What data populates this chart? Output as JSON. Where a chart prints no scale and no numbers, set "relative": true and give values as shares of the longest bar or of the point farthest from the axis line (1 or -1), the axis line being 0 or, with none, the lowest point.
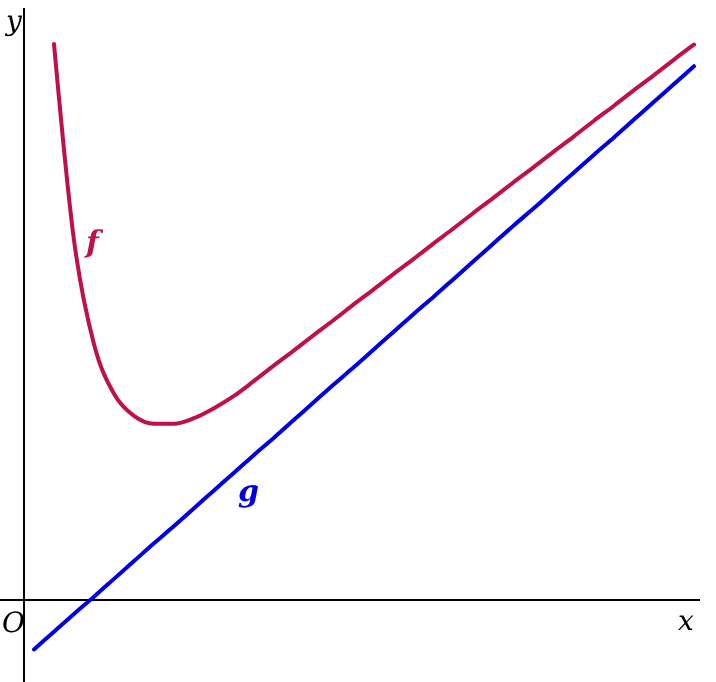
{
  "chart_data": {
    "type": "line",
    "relative": true,
    "xlabel": "x",
    "ylabel": "y",
    "annotations": [
      "O"
    ],
    "marker": "none",
    "line_style": "solid",
    "categories": [
      null,
      null,
      null,
      null,
      null,
      null,
      null,
      null,
      null,
      null,
      null,
      null,
      null,
      null,
      null,
      null,
      null,
      null,
      null,
      null,
      null,
      null,
      null,
      null,
      null,
      null,
      null,
      null,
      null,
      null,
      null,
      null,
      null,
      null,
      null
    ],
    "series": [
      {
        "name": "f",
        "color": "#c0104a",
        "values": [
          null,
          null,
          1.0,
          0.647,
          0.46,
          0.371,
          0.331,
          0.317,
          0.317,
          0.327,
          0.345,
          0.367,
          0.394,
          0.422,
          0.449,
          0.477,
          0.504,
          0.532,
          0.559,
          0.587,
          0.614,
          0.642,
          0.669,
          0.697,
          0.724,
          0.752,
          0.779,
          0.807,
          0.834,
          0.862,
          0.889,
          0.917,
          0.944,
          0.972,
          0.999
        ]
      },
      {
        "name": "g",
        "color": "#0000e0",
        "values": [
          null,
          -0.089,
          -0.057,
          -0.025,
          0.006,
          0.038,
          0.07,
          0.102,
          0.133,
          0.165,
          0.197,
          0.229,
          0.261,
          0.292,
          0.324,
          0.356,
          0.388,
          0.419,
          0.451,
          0.483,
          0.515,
          0.546,
          0.578,
          0.61,
          0.642,
          0.674,
          0.705,
          0.737,
          0.769,
          0.801,
          0.832,
          0.864,
          0.896,
          0.928,
          0.96
        ]
      }
    ]
  }
}
